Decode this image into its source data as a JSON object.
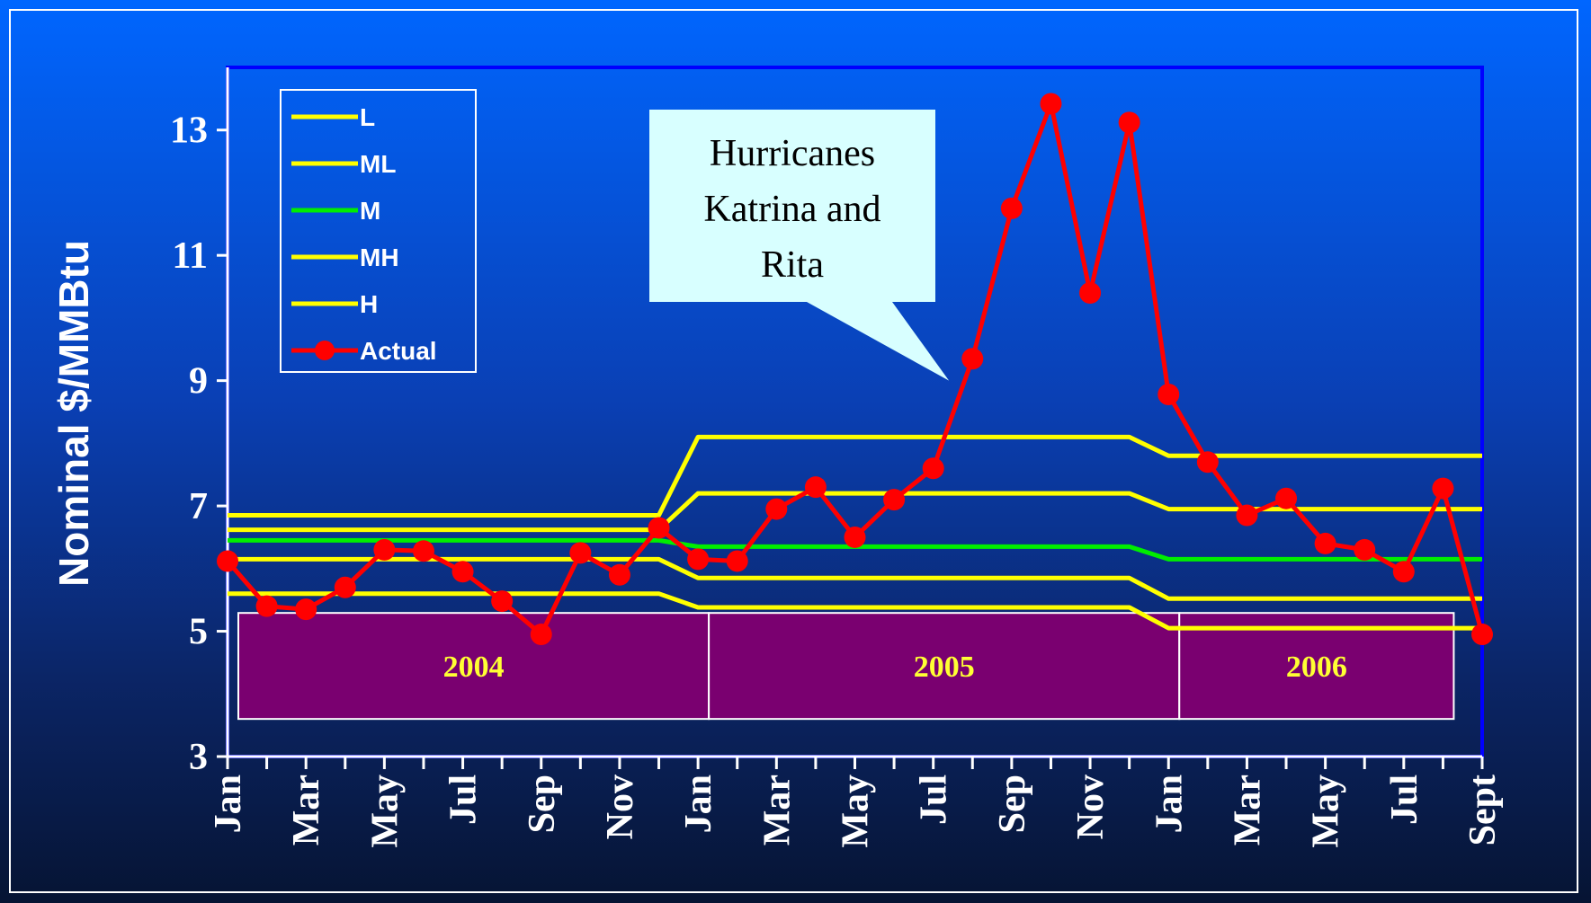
{
  "colors": {
    "band": "#ffff00",
    "mid": "#00ee00",
    "actual": "#ff0000",
    "axis": "#0000ff",
    "year_box": "#7a0070",
    "callout": "#d8ffff"
  },
  "chart_data": {
    "type": "line",
    "ylabel": "Nominal $/MMBtu",
    "ylim": [
      3,
      14
    ],
    "yticks": [
      3,
      5,
      7,
      9,
      11,
      13
    ],
    "x_tick_labels": [
      "Jan",
      "Mar",
      "May",
      "Jul",
      "Sep",
      "Nov",
      "Jan",
      "Mar",
      "May",
      "Jul",
      "Sep",
      "Nov",
      "Jan",
      "Mar",
      "May",
      "Jul",
      "Sept"
    ],
    "months_count": 33,
    "year_bands": [
      {
        "label": "2004",
        "start_month": 0,
        "end_month": 12
      },
      {
        "label": "2005",
        "start_month": 12,
        "end_month": 24
      },
      {
        "label": "2006",
        "start_month": 24,
        "end_month": 31
      }
    ],
    "annotation": {
      "lines": [
        "Hurricanes",
        "Katrina and",
        "Rita"
      ],
      "points_to_month": 18.4,
      "points_to_value": 9.0
    },
    "legend_position": "top-left",
    "series": [
      {
        "name": "L",
        "color": "#ffff00",
        "marker": false,
        "points": [
          [
            0,
            5.6
          ],
          [
            11,
            5.6
          ],
          [
            12,
            5.38
          ],
          [
            23,
            5.38
          ],
          [
            24,
            5.05
          ],
          [
            32,
            5.05
          ]
        ]
      },
      {
        "name": "ML",
        "color": "#ffff00",
        "marker": false,
        "points": [
          [
            0,
            6.15
          ],
          [
            11,
            6.15
          ],
          [
            12,
            5.85
          ],
          [
            23,
            5.85
          ],
          [
            24,
            5.52
          ],
          [
            32,
            5.52
          ]
        ]
      },
      {
        "name": "M",
        "color": "#00ee00",
        "marker": false,
        "points": [
          [
            0,
            6.45
          ],
          [
            11,
            6.45
          ],
          [
            12,
            6.35
          ],
          [
            23,
            6.35
          ],
          [
            24,
            6.15
          ],
          [
            32,
            6.15
          ]
        ]
      },
      {
        "name": "MH",
        "color": "#ffff00",
        "marker": false,
        "points": [
          [
            0,
            6.62
          ],
          [
            11,
            6.62
          ],
          [
            12,
            7.2
          ],
          [
            23,
            7.2
          ],
          [
            24,
            6.95
          ],
          [
            32,
            6.95
          ]
        ]
      },
      {
        "name": "H",
        "color": "#ffff00",
        "marker": false,
        "points": [
          [
            0,
            6.85
          ],
          [
            11,
            6.85
          ],
          [
            12,
            8.1
          ],
          [
            23,
            8.1
          ],
          [
            24,
            7.8
          ],
          [
            32,
            7.8
          ]
        ]
      },
      {
        "name": "Actual",
        "color": "#ff0000",
        "marker": true,
        "values": [
          6.12,
          5.4,
          5.35,
          5.7,
          6.3,
          6.28,
          5.95,
          5.48,
          4.95,
          6.25,
          5.9,
          6.65,
          6.15,
          6.12,
          6.95,
          7.3,
          6.5,
          7.1,
          7.6,
          9.35,
          11.75,
          13.42,
          10.4,
          13.12,
          8.78,
          7.7,
          6.85,
          7.12,
          6.4,
          6.3,
          5.95,
          7.28,
          4.95
        ]
      }
    ]
  }
}
